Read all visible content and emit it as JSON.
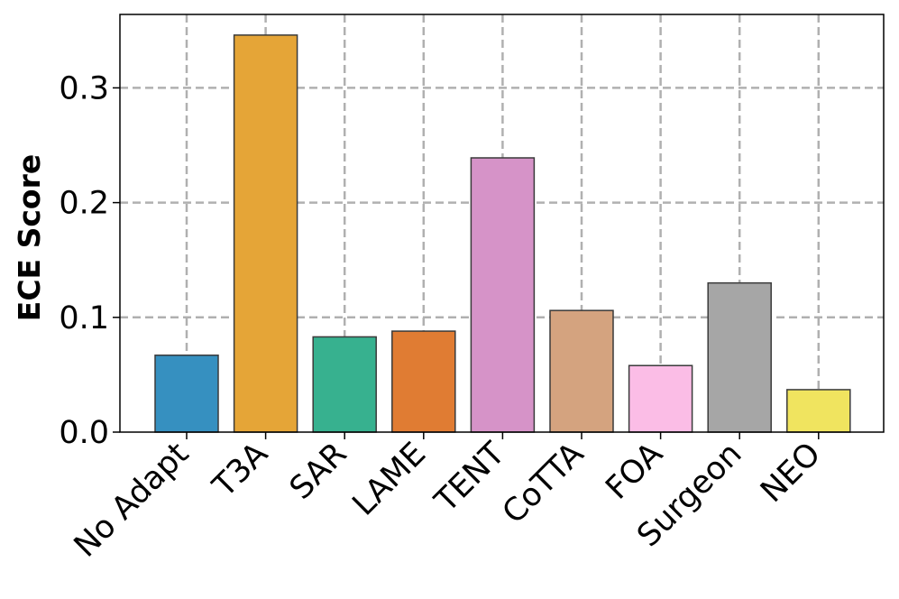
{
  "chart_data": {
    "type": "bar",
    "title": "",
    "xlabel": "",
    "ylabel": "ECE Score",
    "categories": [
      "No Adapt",
      "T3A",
      "SAR",
      "LAME",
      "TENT",
      "CoTTA",
      "FOA",
      "Surgeon",
      "NEO"
    ],
    "values": [
      0.067,
      0.346,
      0.083,
      0.088,
      0.239,
      0.106,
      0.058,
      0.13,
      0.037
    ],
    "colors": [
      "#3690c0",
      "#e5a537",
      "#37b18f",
      "#e07c33",
      "#d693c8",
      "#d4a37f",
      "#fbbde6",
      "#a6a6a6",
      "#f0e45f"
    ],
    "ylim": [
      0,
      0.364
    ],
    "yticks": [
      0.0,
      0.1,
      0.2,
      0.3
    ],
    "ytick_labels": [
      "0.0",
      "0.1",
      "0.2",
      "0.3"
    ],
    "grid": true,
    "grid_style": "dashed",
    "legend": false
  }
}
